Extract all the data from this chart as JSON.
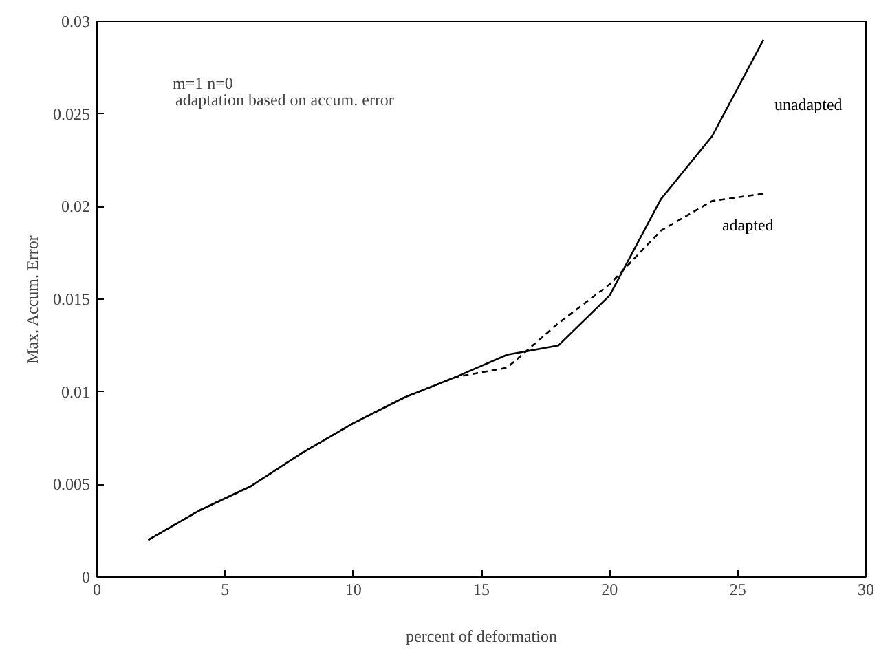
{
  "chart_data": {
    "type": "line",
    "xlabel": "percent of deformation",
    "ylabel": "Max. Accum. Error",
    "annotations": [
      "m=1  n=0",
      "adaptation based on accum. error"
    ],
    "x": [
      2,
      4,
      6,
      8,
      10,
      12,
      14,
      16,
      18,
      20,
      22,
      24,
      26
    ],
    "series": [
      {
        "name": "unadapted",
        "color": "#000000",
        "line_style": "solid",
        "values": [
          0.002,
          0.0036,
          0.0049,
          0.0067,
          0.0083,
          0.0097,
          0.0108,
          0.012,
          0.0125,
          0.0152,
          0.0204,
          0.0238,
          0.029
        ]
      },
      {
        "name": "adapted",
        "color": "#000000",
        "line_style": "dashed",
        "values": [
          0.002,
          0.0036,
          0.0049,
          0.0067,
          0.0083,
          0.0097,
          0.0108,
          0.0113,
          0.0137,
          0.0158,
          0.0187,
          0.0203,
          0.0207
        ]
      }
    ],
    "xlim": [
      0,
      30
    ],
    "xticks": [
      0,
      5,
      10,
      15,
      20,
      25,
      30
    ],
    "ylim": [
      0,
      0.03
    ],
    "yticks": [
      0,
      0.005,
      0.01,
      0.015,
      0.02,
      0.025,
      0.03
    ],
    "grid": false
  }
}
